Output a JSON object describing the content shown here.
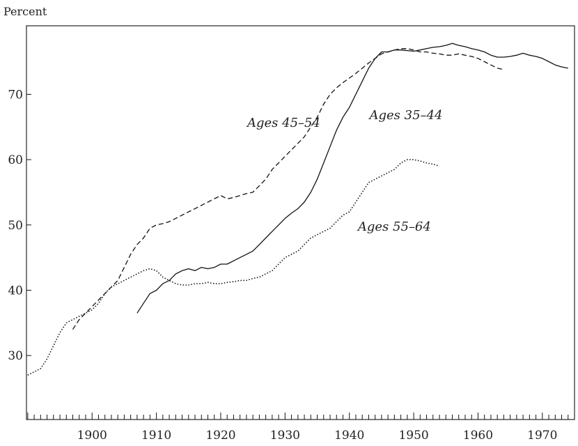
{
  "chart_data": {
    "type": "line",
    "title": "",
    "ylabel": "Percent",
    "xlabel": "",
    "xlim": [
      1889.8,
      1975
    ],
    "ylim": [
      20.2,
      80.5
    ],
    "x_ticks": [
      1900,
      1910,
      1920,
      1930,
      1940,
      1950,
      1960,
      1970
    ],
    "x_tick_labels": [
      "1900",
      "1910",
      "1920",
      "1930",
      "1940",
      "1950",
      "1960",
      "1970"
    ],
    "x_minor_step": 1,
    "y_ticks": [
      30,
      40,
      50,
      60,
      70
    ],
    "y_tick_labels": [
      "30",
      "40",
      "50",
      "60",
      "70"
    ],
    "grid": false,
    "legend": "none",
    "series": [
      {
        "name": "Ages 35–44",
        "style": "solid",
        "label_x": 1948.8,
        "label_y": 66.2,
        "x": [
          1907,
          1908,
          1909,
          1910,
          1911,
          1912,
          1913,
          1914,
          1915,
          1916,
          1917,
          1918,
          1919,
          1920,
          1921,
          1922,
          1923,
          1924,
          1925,
          1926,
          1927,
          1928,
          1929,
          1930,
          1931,
          1932,
          1933,
          1934,
          1935,
          1936,
          1937,
          1938,
          1939,
          1940,
          1941,
          1942,
          1943,
          1944,
          1945,
          1946,
          1947,
          1948,
          1949,
          1950,
          1951,
          1952,
          1953,
          1954,
          1955,
          1956,
          1957,
          1958,
          1959,
          1960,
          1961,
          1962,
          1963,
          1964,
          1965,
          1966,
          1967,
          1968,
          1969,
          1970,
          1971,
          1972,
          1973,
          1974
        ],
        "values": [
          36.5,
          38.0,
          39.5,
          40.0,
          41.0,
          41.5,
          42.5,
          43.0,
          43.3,
          43.0,
          43.5,
          43.3,
          43.5,
          44.0,
          44.0,
          44.5,
          45.0,
          45.5,
          46.0,
          47.0,
          48.0,
          49.0,
          50.0,
          51.0,
          51.8,
          52.5,
          53.5,
          55.0,
          57.0,
          59.5,
          62.0,
          64.5,
          66.5,
          68.0,
          70.0,
          72.0,
          74.0,
          75.5,
          76.5,
          76.5,
          76.8,
          76.8,
          76.7,
          76.6,
          76.8,
          77.0,
          77.2,
          77.3,
          77.5,
          77.8,
          77.5,
          77.3,
          77.0,
          76.8,
          76.5,
          76.0,
          75.7,
          75.7,
          75.8,
          76.0,
          76.3,
          76.0,
          75.8,
          75.5,
          75.0,
          74.5,
          74.2,
          74.0
        ]
      },
      {
        "name": "Ages 45–54",
        "style": "dashed",
        "label_x": 1929.8,
        "label_y": 65.0,
        "x": [
          1897,
          1898,
          1899,
          1900,
          1901,
          1902,
          1903,
          1904,
          1905,
          1906,
          1907,
          1908,
          1909,
          1910,
          1911,
          1912,
          1913,
          1914,
          1915,
          1916,
          1917,
          1918,
          1919,
          1920,
          1921,
          1922,
          1923,
          1924,
          1925,
          1926,
          1927,
          1928,
          1929,
          1930,
          1931,
          1932,
          1933,
          1934,
          1935,
          1936,
          1937,
          1938,
          1939,
          1940,
          1941,
          1942,
          1943,
          1944,
          1945,
          1946,
          1947,
          1948,
          1949,
          1950,
          1951,
          1952,
          1953,
          1954,
          1955,
          1956,
          1957,
          1958,
          1959,
          1960,
          1961,
          1962,
          1963,
          1964
        ],
        "values": [
          34.0,
          35.5,
          36.5,
          37.5,
          38.5,
          39.5,
          40.5,
          41.5,
          43.5,
          45.5,
          47.0,
          48.0,
          49.5,
          50.0,
          50.2,
          50.5,
          51.0,
          51.5,
          52.0,
          52.5,
          53.0,
          53.5,
          54.0,
          54.5,
          54.0,
          54.2,
          54.5,
          54.8,
          55.0,
          56.0,
          57.0,
          58.5,
          59.5,
          60.5,
          61.5,
          62.5,
          63.5,
          65.0,
          66.5,
          68.5,
          70.0,
          71.0,
          71.8,
          72.5,
          73.2,
          74.0,
          74.8,
          75.5,
          76.2,
          76.5,
          76.8,
          77.0,
          77.0,
          76.8,
          76.5,
          76.5,
          76.3,
          76.2,
          76.0,
          76.0,
          76.2,
          76.0,
          75.8,
          75.5,
          75.0,
          74.5,
          74.0,
          73.8
        ]
      },
      {
        "name": "Ages 55–64",
        "style": "dotted",
        "label_x": 1947.0,
        "label_y": 49.1,
        "x": [
          1890,
          1891,
          1892,
          1893,
          1894,
          1895,
          1896,
          1897,
          1898,
          1899,
          1900,
          1901,
          1902,
          1903,
          1904,
          1905,
          1906,
          1907,
          1908,
          1909,
          1910,
          1911,
          1912,
          1913,
          1914,
          1915,
          1916,
          1917,
          1918,
          1919,
          1920,
          1921,
          1922,
          1923,
          1924,
          1925,
          1926,
          1927,
          1928,
          1929,
          1930,
          1931,
          1932,
          1933,
          1934,
          1935,
          1936,
          1937,
          1938,
          1939,
          1940,
          1941,
          1942,
          1943,
          1944,
          1945,
          1946,
          1947,
          1948,
          1949,
          1950,
          1951,
          1952,
          1953,
          1954
        ],
        "values": [
          27.0,
          27.5,
          28.0,
          29.5,
          31.5,
          33.5,
          35.0,
          35.5,
          36.0,
          36.5,
          37.0,
          38.0,
          39.5,
          40.5,
          41.0,
          41.5,
          42.0,
          42.5,
          43.0,
          43.3,
          43.0,
          42.0,
          41.5,
          41.0,
          40.8,
          40.8,
          41.0,
          41.0,
          41.2,
          41.0,
          41.0,
          41.2,
          41.3,
          41.5,
          41.5,
          41.8,
          42.0,
          42.5,
          43.0,
          44.0,
          45.0,
          45.5,
          46.0,
          47.0,
          48.0,
          48.5,
          49.0,
          49.5,
          50.5,
          51.5,
          52.0,
          53.5,
          55.0,
          56.5,
          57.0,
          57.5,
          58.0,
          58.5,
          59.5,
          60.0,
          60.0,
          59.8,
          59.5,
          59.3,
          59.0
        ]
      }
    ]
  }
}
